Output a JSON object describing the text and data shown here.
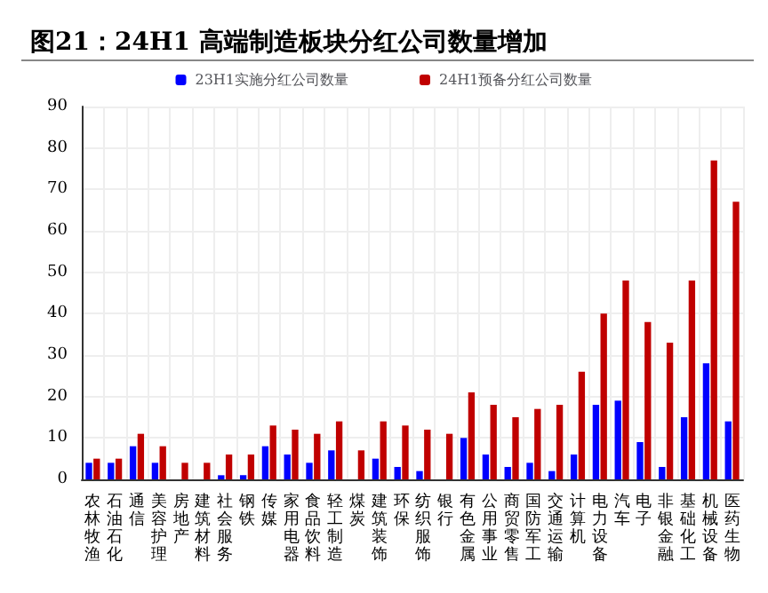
{
  "chart_data": {
    "type": "bar",
    "title": "图21：24H1 高端制造板块分红公司数量增加",
    "categories": [
      "农林牧渔",
      "石油石化",
      "通信",
      "美容护理",
      "房地产",
      "建筑材料",
      "社会服务",
      "钢铁",
      "传媒",
      "家用电器",
      "食品饮料",
      "轻工制造",
      "煤炭",
      "建筑装饰",
      "环保",
      "纺织服饰",
      "银行",
      "有色金属",
      "公用事业",
      "商贸零售",
      "国防军工",
      "交通运输",
      "计算机",
      "电力设备",
      "汽车",
      "电子",
      "非银金融",
      "基础化工",
      "机械设备",
      "医药生物"
    ],
    "series": [
      {
        "name": "23H1实施分红公司数量",
        "color": "#0000ff",
        "values": [
          4,
          4,
          8,
          4,
          0,
          0,
          1,
          1,
          8,
          6,
          4,
          7,
          0,
          5,
          3,
          2,
          0,
          10,
          6,
          3,
          4,
          2,
          6,
          18,
          19,
          9,
          3,
          15,
          28,
          14
        ]
      },
      {
        "name": "24H1预备分红公司数量",
        "color": "#c00000",
        "values": [
          5,
          5,
          11,
          8,
          4,
          4,
          6,
          6,
          13,
          12,
          11,
          14,
          7,
          14,
          13,
          12,
          11,
          21,
          18,
          15,
          17,
          18,
          26,
          40,
          48,
          38,
          33,
          48,
          77,
          67
        ]
      }
    ],
    "ylim": [
      0,
      90
    ],
    "yticks": [
      0,
      10,
      20,
      30,
      40,
      50,
      60,
      70,
      80,
      90
    ],
    "grid": true,
    "legend": "top"
  }
}
